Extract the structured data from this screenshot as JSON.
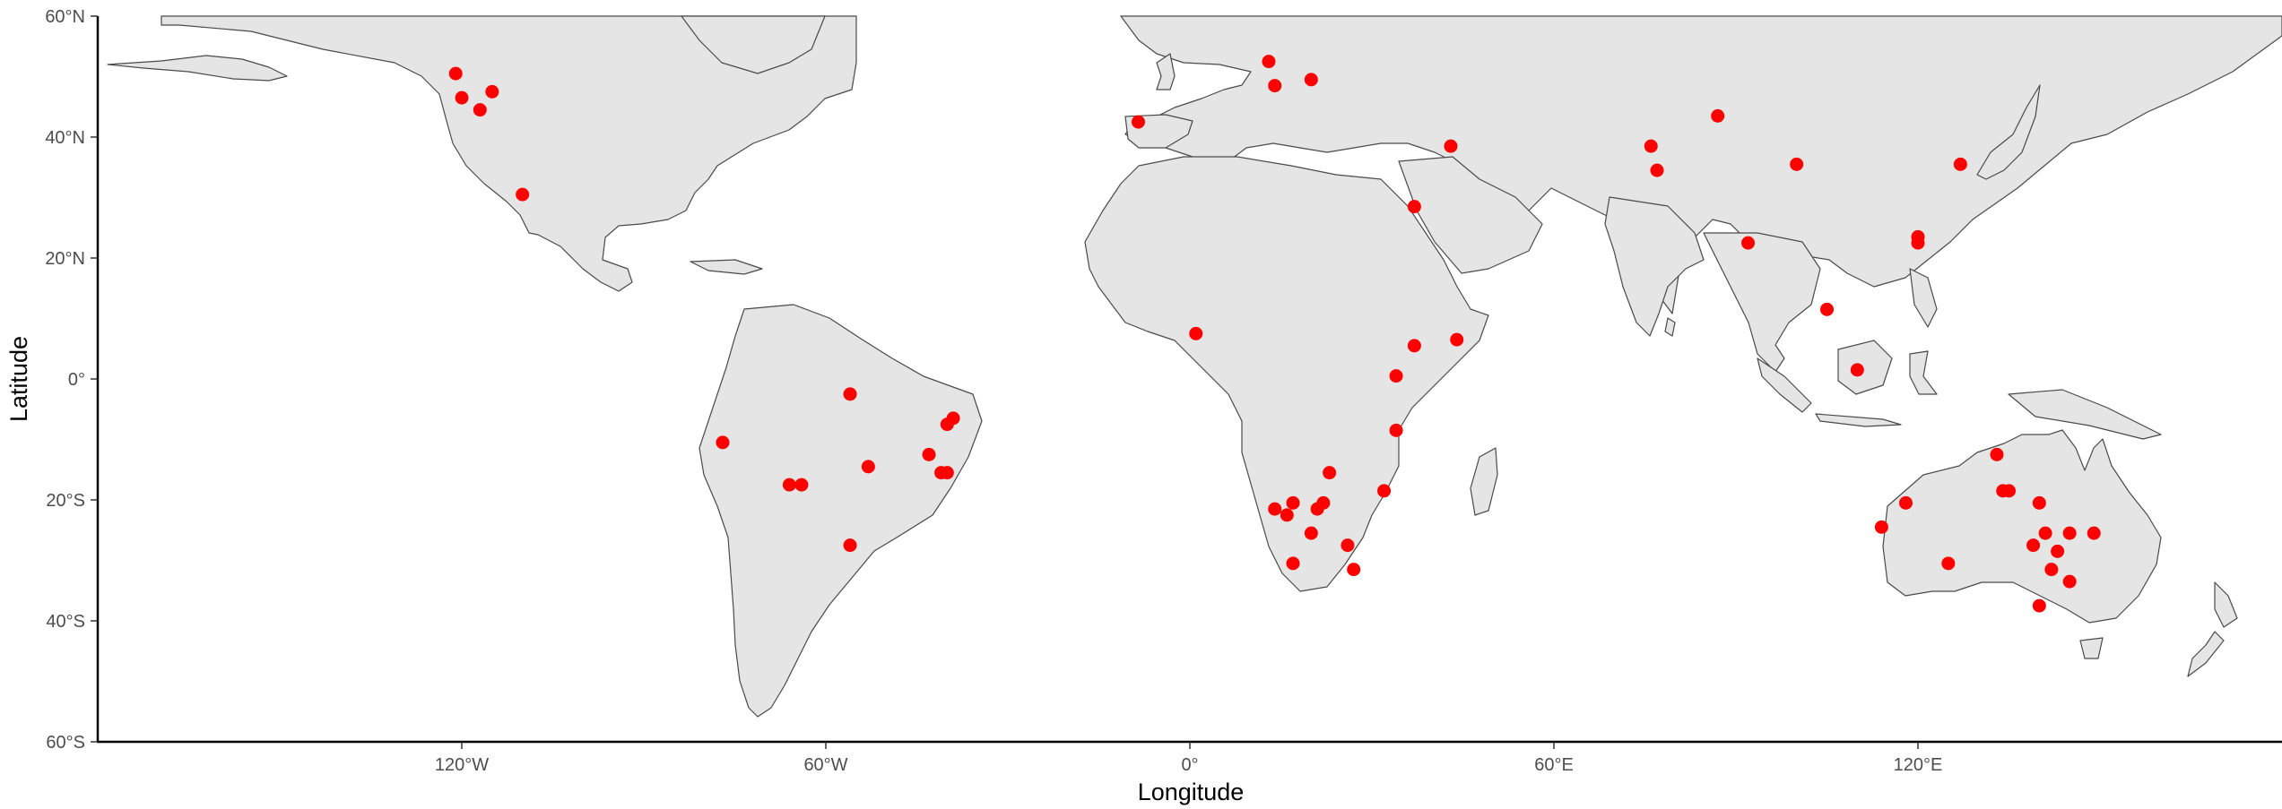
{
  "map": {
    "projection": "equirectangular",
    "lon_range": [
      -180,
      180
    ],
    "lat_range": [
      -60,
      60
    ],
    "land_color": "#e5e5e5",
    "border_color": "#4a4a4a",
    "point_color": "#ff0000",
    "x_axis": {
      "title": "Longitude",
      "ticks": [
        {
          "lon": -120,
          "label": "120°W"
        },
        {
          "lon": -60,
          "label": "60°W"
        },
        {
          "lon": 0,
          "label": "0°"
        },
        {
          "lon": 60,
          "label": "60°E"
        },
        {
          "lon": 120,
          "label": "120°E"
        }
      ]
    },
    "y_axis": {
      "title": "Latitude",
      "ticks": [
        {
          "lat": 60,
          "label": "60°N"
        },
        {
          "lat": 40,
          "label": "40°N"
        },
        {
          "lat": 20,
          "label": "20°N"
        },
        {
          "lat": 0,
          "label": "0°"
        },
        {
          "lat": -20,
          "label": "20°S"
        },
        {
          "lat": -40,
          "label": "40°S"
        },
        {
          "lat": -60,
          "label": "60°S"
        }
      ]
    },
    "points": [
      {
        "lon": -121,
        "lat": 50.5
      },
      {
        "lon": -120,
        "lat": 46.5
      },
      {
        "lon": -115,
        "lat": 47.5
      },
      {
        "lon": -117,
        "lat": 44.5
      },
      {
        "lon": -110,
        "lat": 30.5
      },
      {
        "lon": -77,
        "lat": -10.5
      },
      {
        "lon": -56,
        "lat": -2.5
      },
      {
        "lon": -53,
        "lat": -14.5
      },
      {
        "lon": -66,
        "lat": -17.5
      },
      {
        "lon": -64,
        "lat": -17.5
      },
      {
        "lon": -56,
        "lat": -27.5
      },
      {
        "lon": -43,
        "lat": -12.5
      },
      {
        "lon": -41,
        "lat": -15.5
      },
      {
        "lon": -40,
        "lat": -15.5
      },
      {
        "lon": -40,
        "lat": -7.5
      },
      {
        "lon": -39,
        "lat": -6.5
      },
      {
        "lon": -8.5,
        "lat": 42.5
      },
      {
        "lon": 13,
        "lat": 52.5
      },
      {
        "lon": 14,
        "lat": 48.5
      },
      {
        "lon": 20,
        "lat": 49.5
      },
      {
        "lon": 43,
        "lat": 38.5
      },
      {
        "lon": 37,
        "lat": 28.5
      },
      {
        "lon": 1,
        "lat": 7.5
      },
      {
        "lon": 37,
        "lat": 5.5
      },
      {
        "lon": 44,
        "lat": 6.5
      },
      {
        "lon": 34,
        "lat": 0.5
      },
      {
        "lon": 34,
        "lat": -8.5
      },
      {
        "lon": 23,
        "lat": -15.5
      },
      {
        "lon": 32,
        "lat": -18.5
      },
      {
        "lon": 14,
        "lat": -21.5
      },
      {
        "lon": 16,
        "lat": -22.5
      },
      {
        "lon": 17,
        "lat": -20.5
      },
      {
        "lon": 21,
        "lat": -21.5
      },
      {
        "lon": 22,
        "lat": -20.5
      },
      {
        "lon": 20,
        "lat": -25.5
      },
      {
        "lon": 26,
        "lat": -27.5
      },
      {
        "lon": 17,
        "lat": -30.5
      },
      {
        "lon": 27,
        "lat": -31.5
      },
      {
        "lon": 76,
        "lat": 38.5
      },
      {
        "lon": 77,
        "lat": 34.5
      },
      {
        "lon": 87,
        "lat": 43.5
      },
      {
        "lon": 100,
        "lat": 35.5
      },
      {
        "lon": 92,
        "lat": 22.5
      },
      {
        "lon": 105,
        "lat": 11.5
      },
      {
        "lon": 110,
        "lat": 1.5
      },
      {
        "lon": 120,
        "lat": 22.5
      },
      {
        "lon": 120,
        "lat": 23.5
      },
      {
        "lon": 127,
        "lat": 35.5
      },
      {
        "lon": 114,
        "lat": -24.5
      },
      {
        "lon": 118,
        "lat": -20.5
      },
      {
        "lon": 125,
        "lat": -30.5
      },
      {
        "lon": 133,
        "lat": -12.5
      },
      {
        "lon": 134,
        "lat": -18.5
      },
      {
        "lon": 135,
        "lat": -18.5
      },
      {
        "lon": 140,
        "lat": -20.5
      },
      {
        "lon": 139,
        "lat": -27.5
      },
      {
        "lon": 141,
        "lat": -25.5
      },
      {
        "lon": 142,
        "lat": -31.5
      },
      {
        "lon": 143,
        "lat": -28.5
      },
      {
        "lon": 145,
        "lat": -25.5
      },
      {
        "lon": 145,
        "lat": -33.5
      },
      {
        "lon": 149,
        "lat": -25.5
      },
      {
        "lon": 140,
        "lat": -37.5
      }
    ]
  }
}
